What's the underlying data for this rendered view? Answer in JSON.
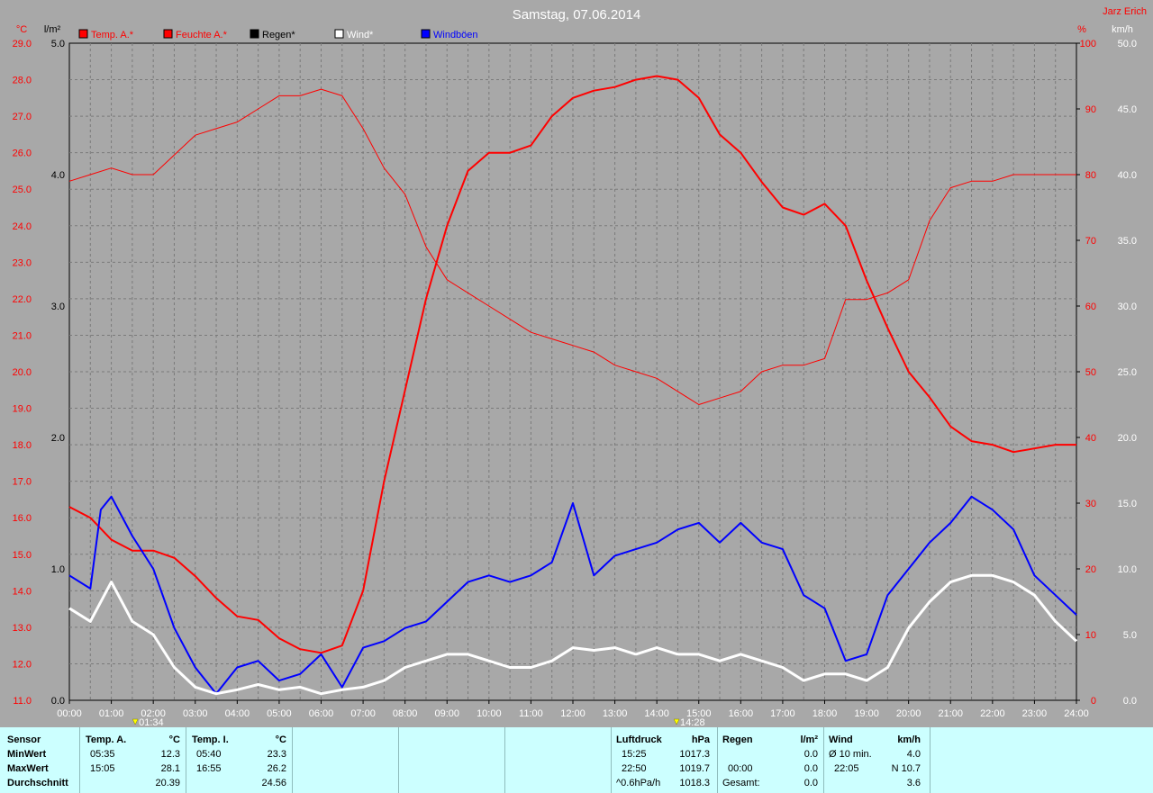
{
  "header": {
    "title": "Samstag, 07.06.2014",
    "station": "Jarz Erich"
  },
  "chart_data": {
    "type": "line",
    "title": "Samstag, 07.06.2014",
    "legend": [
      {
        "name": "Temp. A.*",
        "color": "#ff0000"
      },
      {
        "name": "Feuchte A.*",
        "color": "#ff0000"
      },
      {
        "name": "Regen*",
        "color": "#000000"
      },
      {
        "name": "Wind*",
        "color": "#ffffff"
      },
      {
        "name": "Windböen",
        "color": "#0000ff"
      }
    ],
    "axes": {
      "temp": {
        "unit": "°C",
        "range": [
          11.0,
          29.0
        ],
        "ticks": [
          "11.0",
          "12.0",
          "13.0",
          "14.0",
          "15.0",
          "16.0",
          "17.0",
          "18.0",
          "19.0",
          "20.0",
          "21.0",
          "22.0",
          "23.0",
          "24.0",
          "25.0",
          "26.0",
          "27.0",
          "28.0",
          "29.0"
        ]
      },
      "rain": {
        "unit": "l/m²",
        "range": [
          0,
          5
        ],
        "ticks": [
          "0.0",
          "1.0",
          "2.0",
          "3.0",
          "4.0",
          "5.0"
        ]
      },
      "humidity": {
        "unit": "%",
        "range": [
          0,
          100
        ],
        "ticks": [
          "0",
          "10",
          "20",
          "30",
          "40",
          "50",
          "60",
          "70",
          "80",
          "90",
          "100"
        ]
      },
      "wind": {
        "unit": "km/h",
        "range": [
          0,
          50
        ],
        "ticks": [
          "0.0",
          "5.0",
          "10.0",
          "15.0",
          "20.0",
          "25.0",
          "30.0",
          "35.0",
          "40.0",
          "45.0",
          "50.0"
        ]
      },
      "x": {
        "range": [
          0,
          24
        ],
        "ticks": [
          "00:00",
          "01:00",
          "02:00",
          "03:00",
          "04:00",
          "05:00",
          "06:00",
          "07:00",
          "08:00",
          "09:00",
          "10:00",
          "11:00",
          "12:00",
          "13:00",
          "14:00",
          "15:00",
          "16:00",
          "17:00",
          "18:00",
          "19:00",
          "20:00",
          "21:00",
          "22:00",
          "23:00",
          "24:00"
        ]
      }
    },
    "markers": [
      {
        "label": "01:34",
        "x": 1.57
      },
      {
        "label": "14:28",
        "x": 14.47
      }
    ],
    "series": [
      {
        "name": "Feuchte A.*",
        "axis": "humidity",
        "color": "#ff0000",
        "width": 1,
        "x": [
          0,
          0.5,
          1,
          1.5,
          2,
          2.5,
          3,
          3.5,
          4,
          4.5,
          5,
          5.5,
          6,
          6.5,
          7,
          7.5,
          8,
          8.5,
          9,
          9.5,
          10,
          10.5,
          11,
          11.5,
          12,
          12.5,
          13,
          13.5,
          14,
          14.5,
          15,
          15.5,
          16,
          16.5,
          17,
          17.5,
          18,
          18.5,
          19,
          19.5,
          20,
          20.5,
          21,
          21.5,
          22,
          22.5,
          23,
          23.5,
          24
        ],
        "y": [
          79,
          80,
          81,
          80,
          80,
          83,
          86,
          87,
          88,
          90,
          92,
          92,
          93,
          92,
          87,
          81,
          77,
          69,
          64,
          62,
          60,
          58,
          56,
          55,
          54,
          53,
          51,
          50,
          49,
          47,
          45,
          46,
          47,
          50,
          51,
          51,
          52,
          61,
          61,
          62,
          64,
          73,
          78,
          79,
          79,
          80,
          80,
          80,
          80
        ]
      },
      {
        "name": "Temp. A.*",
        "axis": "temp",
        "color": "#ff0000",
        "width": 2,
        "x": [
          0,
          0.5,
          1,
          1.5,
          2,
          2.5,
          3,
          3.5,
          4,
          4.5,
          5,
          5.5,
          6,
          6.5,
          7,
          7.5,
          8,
          8.5,
          9,
          9.5,
          10,
          10.5,
          11,
          11.5,
          12,
          12.5,
          13,
          13.5,
          14,
          14.5,
          15,
          15.5,
          16,
          16.5,
          17,
          17.5,
          18,
          18.5,
          19,
          19.5,
          20,
          20.5,
          21,
          21.5,
          22,
          22.5,
          23,
          23.5,
          24
        ],
        "y": [
          16.3,
          16.0,
          15.4,
          15.1,
          15.1,
          14.9,
          14.4,
          13.8,
          13.3,
          13.2,
          12.7,
          12.4,
          12.3,
          12.5,
          14.0,
          17.0,
          19.5,
          22.0,
          24.0,
          25.5,
          26.0,
          26.0,
          26.2,
          27.0,
          27.5,
          27.7,
          27.8,
          28.0,
          28.1,
          28.0,
          27.5,
          26.5,
          26.0,
          25.2,
          24.5,
          24.3,
          24.6,
          24.0,
          22.5,
          21.2,
          20.0,
          19.3,
          18.5,
          18.1,
          18.0,
          17.8,
          17.9,
          18.0,
          18.0
        ]
      },
      {
        "name": "Windböen",
        "axis": "wind",
        "color": "#0000ff",
        "width": 2,
        "x": [
          0,
          0.5,
          0.75,
          1,
          1.5,
          2,
          2.5,
          3,
          3.5,
          4,
          4.5,
          5,
          5.5,
          6,
          6.5,
          7,
          7.5,
          8,
          8.5,
          9,
          9.5,
          10,
          10.5,
          11,
          11.5,
          12,
          12.5,
          13,
          13.5,
          14,
          14.5,
          15,
          15.5,
          16,
          16.5,
          17,
          17.5,
          18,
          18.5,
          19,
          19.5,
          20,
          20.5,
          21,
          21.5,
          22,
          22.5,
          23,
          23.5,
          24
        ],
        "y": [
          9.5,
          8.5,
          14.5,
          15.5,
          12.5,
          10,
          5.5,
          2.5,
          0.5,
          2.5,
          3,
          1.5,
          2,
          3.5,
          1,
          4,
          4.5,
          5.5,
          6,
          7.5,
          9,
          9.5,
          9,
          9.5,
          10.5,
          15,
          9.5,
          11,
          11.5,
          12,
          13,
          13.5,
          12,
          13.5,
          12,
          11.5,
          8,
          7,
          3,
          3.5,
          8,
          10,
          12,
          13.5,
          15.5,
          14.5,
          13,
          9.5,
          8,
          6.5
        ]
      },
      {
        "name": "Wind*",
        "axis": "wind",
        "color": "#ffffff",
        "width": 3,
        "x": [
          0,
          0.5,
          1,
          1.5,
          2,
          2.5,
          3,
          3.5,
          4,
          4.5,
          5,
          5.5,
          6,
          6.5,
          7,
          7.5,
          8,
          8.5,
          9,
          9.5,
          10,
          10.5,
          11,
          11.5,
          12,
          12.5,
          13,
          13.5,
          14,
          14.5,
          15,
          15.5,
          16,
          16.5,
          17,
          17.5,
          18,
          18.5,
          19,
          19.5,
          20,
          20.5,
          21,
          21.5,
          22,
          22.5,
          23,
          23.5,
          24
        ],
        "y": [
          7,
          6,
          9,
          6,
          5,
          2.5,
          1,
          0.5,
          0.8,
          1.2,
          0.8,
          1,
          0.5,
          0.8,
          1,
          1.5,
          2.5,
          3,
          3.5,
          3.5,
          3,
          2.5,
          2.5,
          3,
          4,
          3.8,
          4,
          3.5,
          4,
          3.5,
          3.5,
          3,
          3.5,
          3,
          2.5,
          1.5,
          2,
          2,
          1.5,
          2.5,
          5.5,
          7.5,
          9,
          9.5,
          9.5,
          9,
          8,
          6,
          4.5
        ]
      },
      {
        "name": "Regen*",
        "axis": "rain",
        "color": "#000000",
        "width": 1,
        "x": [
          0,
          24
        ],
        "y": [
          0,
          0
        ]
      }
    ]
  },
  "stats": {
    "sensor": {
      "header": "Sensor",
      "rows": [
        "MinWert",
        "MaxWert",
        "Durchschnitt"
      ]
    },
    "temp_a": {
      "header": "Temp. A.",
      "unit": "°C",
      "min_time": "05:35",
      "min_val": "12.3",
      "max_time": "15:05",
      "max_val": "28.1",
      "avg": "20.39"
    },
    "temp_i": {
      "header": "Temp. I.",
      "unit": "°C",
      "min_time": "05:40",
      "min_val": "23.3",
      "max_time": "16:55",
      "max_val": "26.2",
      "avg": "24.56"
    },
    "pressure": {
      "header": "Luftdruck",
      "unit": "hPa",
      "min_time": "15:25",
      "min_val": "1017.3",
      "max_time": "22:50",
      "max_val": "1019.7",
      "trend": "^0.6hPa/h",
      "trend_val": "1018.3"
    },
    "rain": {
      "header": "Regen",
      "unit": "l/m²",
      "time": "00:00",
      "val": "0.0",
      "total_label": "Gesamt:",
      "total": "0.0",
      "first_val": "0.0"
    },
    "wind": {
      "header": "Wind",
      "unit": "km/h",
      "avg_label": "Ø 10 min.",
      "avg_val": "4.0",
      "max_time": "22:05",
      "max_val": "N 10.7",
      "mean": "3.6"
    }
  }
}
